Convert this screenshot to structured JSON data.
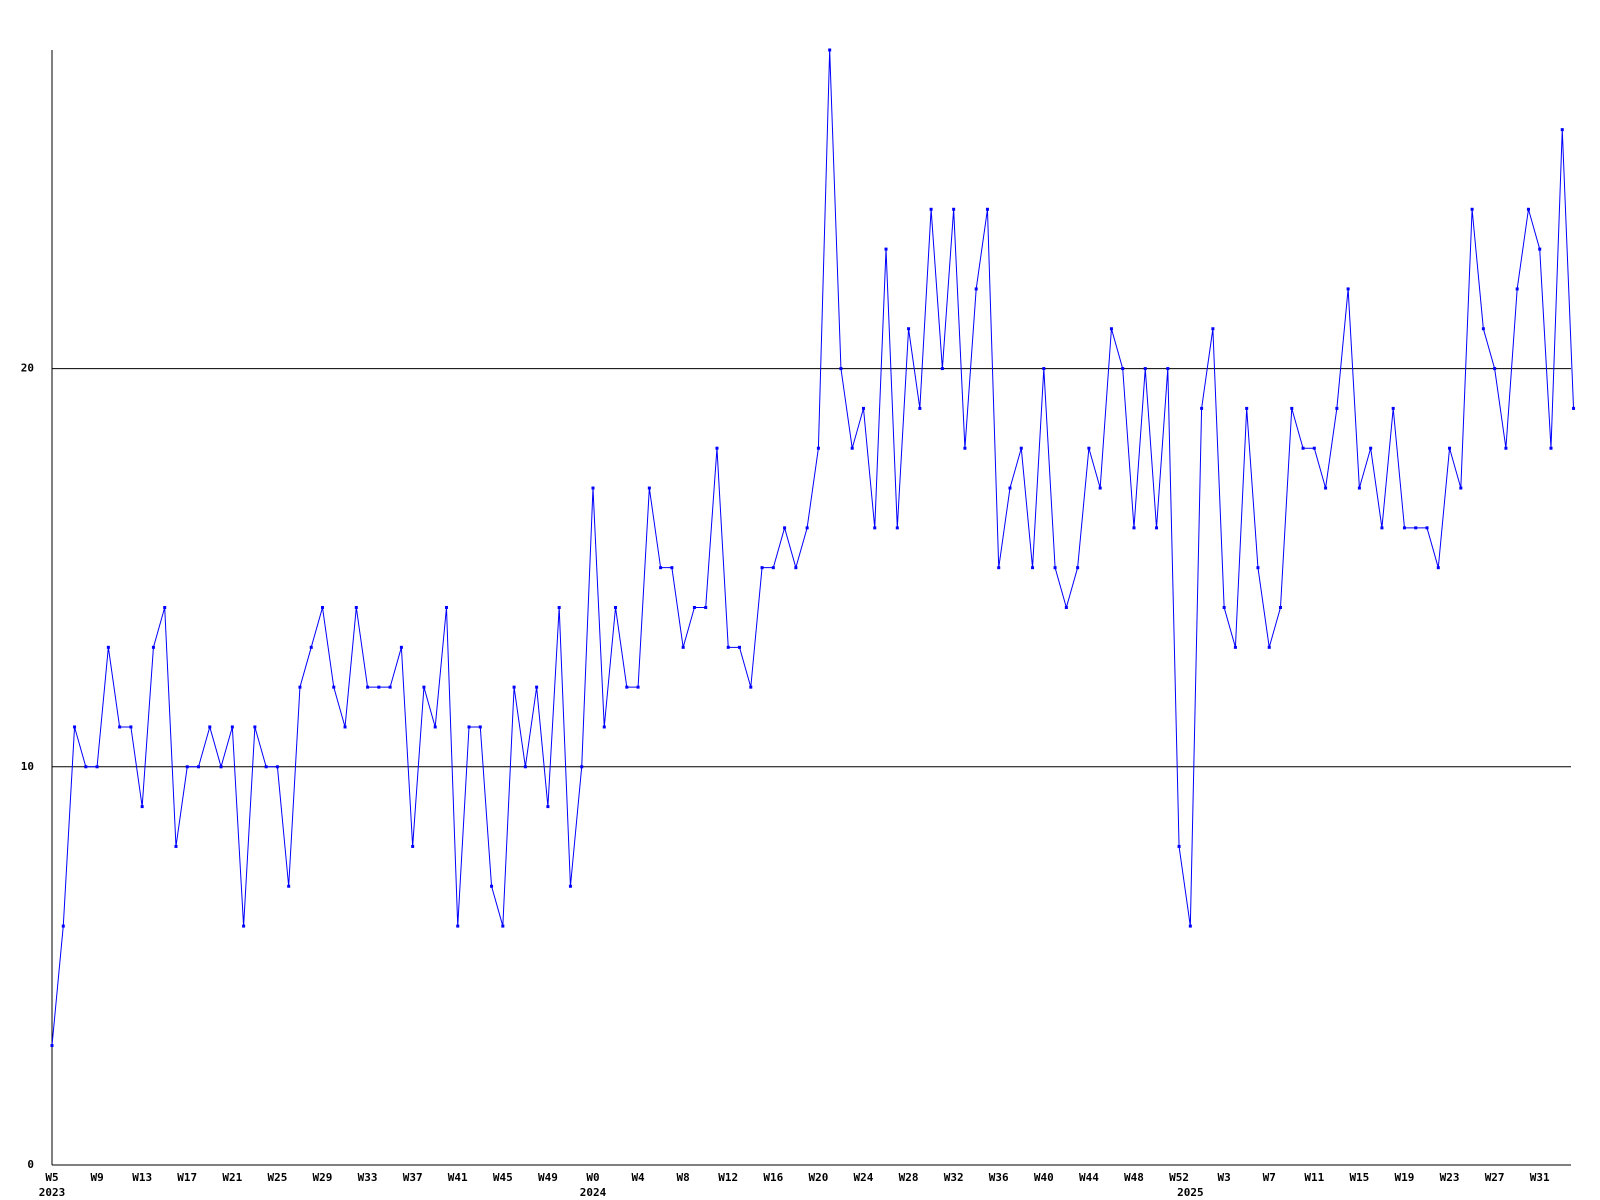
{
  "chart_data": {
    "type": "line",
    "categories": [
      "W5",
      null,
      null,
      null,
      "W9",
      null,
      null,
      null,
      "W13",
      null,
      null,
      null,
      "W17",
      null,
      null,
      null,
      "W21",
      null,
      null,
      null,
      "W25",
      null,
      null,
      null,
      "W29",
      null,
      null,
      null,
      "W33",
      null,
      null,
      null,
      "W37",
      null,
      null,
      null,
      "W41",
      null,
      null,
      null,
      "W45",
      null,
      null,
      null,
      "W49",
      null,
      null,
      null,
      "W0",
      null,
      null,
      null,
      "W4",
      null,
      null,
      null,
      "W8",
      null,
      null,
      null,
      "W12",
      null,
      null,
      null,
      "W16",
      null,
      null,
      null,
      "W20",
      null,
      null,
      null,
      "W24",
      null,
      null,
      null,
      "W28",
      null,
      null,
      null,
      "W32",
      null,
      null,
      null,
      "W36",
      null,
      null,
      null,
      "W40",
      null,
      null,
      null,
      "W44",
      null,
      null,
      null,
      "W48",
      null,
      null,
      null,
      "W52",
      null,
      null,
      null,
      "W3",
      null,
      null,
      null,
      "W7",
      null,
      null,
      null,
      "W11",
      null,
      null,
      null,
      "W15",
      null,
      null,
      null,
      "W19",
      null,
      null,
      null,
      "W23",
      null,
      null,
      null,
      "W27",
      null,
      null,
      null,
      "W31",
      null,
      null,
      null
    ],
    "years": [
      "2023",
      null,
      null,
      null,
      null,
      null,
      null,
      null,
      null,
      null,
      null,
      null,
      null,
      null,
      null,
      null,
      null,
      null,
      null,
      null,
      null,
      null,
      null,
      null,
      null,
      null,
      null,
      null,
      null,
      null,
      null,
      null,
      null,
      null,
      null,
      null,
      null,
      null,
      null,
      null,
      null,
      null,
      null,
      null,
      null,
      null,
      null,
      null,
      "2024",
      null,
      null,
      null,
      null,
      null,
      null,
      null,
      null,
      null,
      null,
      null,
      null,
      null,
      null,
      null,
      null,
      null,
      null,
      null,
      null,
      null,
      null,
      null,
      null,
      null,
      null,
      null,
      null,
      null,
      null,
      null,
      null,
      null,
      null,
      null,
      null,
      null,
      null,
      null,
      null,
      null,
      null,
      null,
      null,
      null,
      null,
      null,
      null,
      null,
      null,
      null,
      null,
      "2025",
      null,
      null,
      null,
      null,
      null,
      null,
      null,
      null,
      null,
      null,
      null,
      null,
      null,
      null,
      null,
      null,
      null,
      null,
      null,
      null,
      null,
      null,
      null,
      null,
      null,
      null,
      null,
      null,
      null,
      null,
      null,
      null,
      null,
      null
    ],
    "series": [
      {
        "color": "#0000ff",
        "values": [
          3,
          6,
          11,
          10,
          10,
          13,
          11,
          11,
          9,
          13,
          14,
          8,
          10,
          10,
          11,
          10,
          11,
          6,
          11,
          10,
          10,
          7,
          12,
          13,
          14,
          12,
          11,
          14,
          12,
          12,
          12,
          13,
          8,
          12,
          11,
          14,
          6,
          11,
          11,
          7,
          6,
          12,
          10,
          12,
          9,
          14,
          7,
          10,
          17,
          11,
          14,
          12,
          12,
          17,
          15,
          15,
          13,
          14,
          14,
          18,
          13,
          13,
          12,
          15,
          15,
          16,
          15,
          16,
          18,
          28,
          20,
          18,
          19,
          16,
          23,
          16,
          21,
          19,
          24,
          20,
          24,
          18,
          22,
          24,
          15,
          17,
          18,
          15,
          20,
          15,
          14,
          15,
          18,
          17,
          21,
          20,
          16,
          20,
          16,
          20,
          8,
          6,
          19,
          21,
          14,
          13,
          19,
          15,
          13,
          14,
          19,
          18,
          18,
          17,
          19,
          22,
          17,
          18,
          16,
          19,
          16,
          16,
          16,
          15,
          18,
          17,
          24,
          21,
          20,
          18,
          22,
          24,
          23,
          18,
          26,
          19
        ]
      }
    ],
    "ylim": [
      0,
      28
    ],
    "yticks": [
      0,
      10,
      20
    ],
    "grid": true
  }
}
